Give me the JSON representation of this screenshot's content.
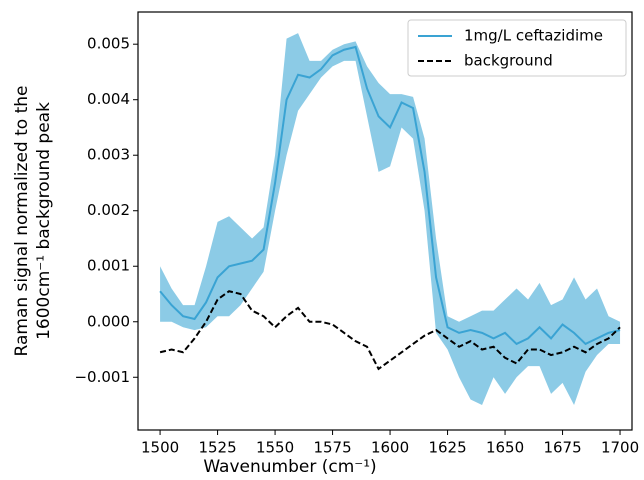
{
  "chart_data": {
    "type": "line",
    "xlabel": "Wavenumber (cm⁻¹)",
    "ylabel": [
      "Raman signal normalized to the",
      "1600cm⁻¹ background peak"
    ],
    "x": [
      1500,
      1505,
      1510,
      1515,
      1520,
      1525,
      1530,
      1535,
      1540,
      1545,
      1550,
      1555,
      1560,
      1565,
      1570,
      1575,
      1580,
      1585,
      1590,
      1595,
      1600,
      1605,
      1610,
      1615,
      1620,
      1625,
      1630,
      1635,
      1640,
      1645,
      1650,
      1655,
      1660,
      1665,
      1670,
      1675,
      1680,
      1685,
      1690,
      1695,
      1700
    ],
    "series": [
      {
        "name": "1mg/L ceftazidime",
        "color": "#3aa3d3",
        "dash": false,
        "values": [
          0.00055,
          0.0003,
          0.0001,
          5e-05,
          0.00035,
          0.0008,
          0.001,
          0.00105,
          0.0011,
          0.0013,
          0.0025,
          0.004,
          0.00445,
          0.0044,
          0.00455,
          0.0048,
          0.0049,
          0.00495,
          0.0042,
          0.0037,
          0.0035,
          0.00395,
          0.00385,
          0.0027,
          0.0008,
          -0.0001,
          -0.0002,
          -0.00015,
          -0.0002,
          -0.0003,
          -0.0002,
          -0.0004,
          -0.0003,
          -0.0001,
          -0.0003,
          -5e-05,
          -0.0002,
          -0.0004,
          -0.0003,
          -0.0002,
          -0.00015
        ],
        "band": {
          "color": "#8ccbe6",
          "upper": [
            0.001,
            0.0006,
            0.0003,
            0.0003,
            0.001,
            0.0018,
            0.0019,
            0.0017,
            0.0015,
            0.0017,
            0.003,
            0.0051,
            0.0052,
            0.0047,
            0.0047,
            0.0049,
            0.005,
            0.00505,
            0.0046,
            0.0043,
            0.0041,
            0.0041,
            0.00405,
            0.0033,
            0.0015,
            0.0001,
            0.0,
            0.0001,
            0.0002,
            0.0002,
            0.0004,
            0.0006,
            0.0004,
            0.0007,
            0.0003,
            0.0004,
            0.0008,
            0.0004,
            0.0006,
            0.0001,
            0.0
          ],
          "lower": [
            0.0,
            0.0,
            -0.0001,
            -0.00015,
            -0.0001,
            0.0001,
            0.0001,
            0.0003,
            0.0006,
            0.0009,
            0.002,
            0.003,
            0.0038,
            0.0041,
            0.0044,
            0.0046,
            0.0047,
            0.0047,
            0.0037,
            0.0027,
            0.0028,
            0.0035,
            0.0033,
            0.002,
            -0.0002,
            -0.0005,
            -0.001,
            -0.0014,
            -0.0015,
            -0.001,
            -0.0013,
            -0.001,
            -0.0008,
            -0.0008,
            -0.0013,
            -0.0011,
            -0.0015,
            -0.0009,
            -0.0006,
            -0.0004,
            -0.0004
          ]
        }
      },
      {
        "name": "background",
        "color": "#000000",
        "dash": true,
        "values": [
          -0.00055,
          -0.0005,
          -0.00055,
          -0.0003,
          0.0,
          0.0004,
          0.00055,
          0.0005,
          0.0002,
          0.0001,
          -0.0001,
          0.0001,
          0.00025,
          0.0,
          0.0,
          -5e-05,
          -0.0002,
          -0.00035,
          -0.00045,
          -0.00085,
          -0.0007,
          -0.00055,
          -0.0004,
          -0.00025,
          -0.00015,
          -0.0003,
          -0.00045,
          -0.00035,
          -0.0005,
          -0.00045,
          -0.00065,
          -0.00075,
          -0.0005,
          -0.0005,
          -0.0006,
          -0.00055,
          -0.00045,
          -0.00055,
          -0.0004,
          -0.0003,
          -0.0001
        ]
      }
    ],
    "xlim": [
      1490.4,
      1705.2
    ],
    "ylim": [
      -0.00195,
      0.00558
    ],
    "xticks": [
      1500,
      1525,
      1550,
      1575,
      1600,
      1625,
      1650,
      1675,
      1700
    ],
    "yticks": [
      {
        "value": -0.001,
        "label": "−0.001"
      },
      {
        "value": 0,
        "label": "0.000"
      },
      {
        "value": 0.001,
        "label": "0.001"
      },
      {
        "value": 0.002,
        "label": "0.002"
      },
      {
        "value": 0.003,
        "label": "0.003"
      },
      {
        "value": 0.004,
        "label": "0.004"
      },
      {
        "value": 0.005,
        "label": "0.005"
      }
    ],
    "legend": "upper right",
    "grid": false
  }
}
